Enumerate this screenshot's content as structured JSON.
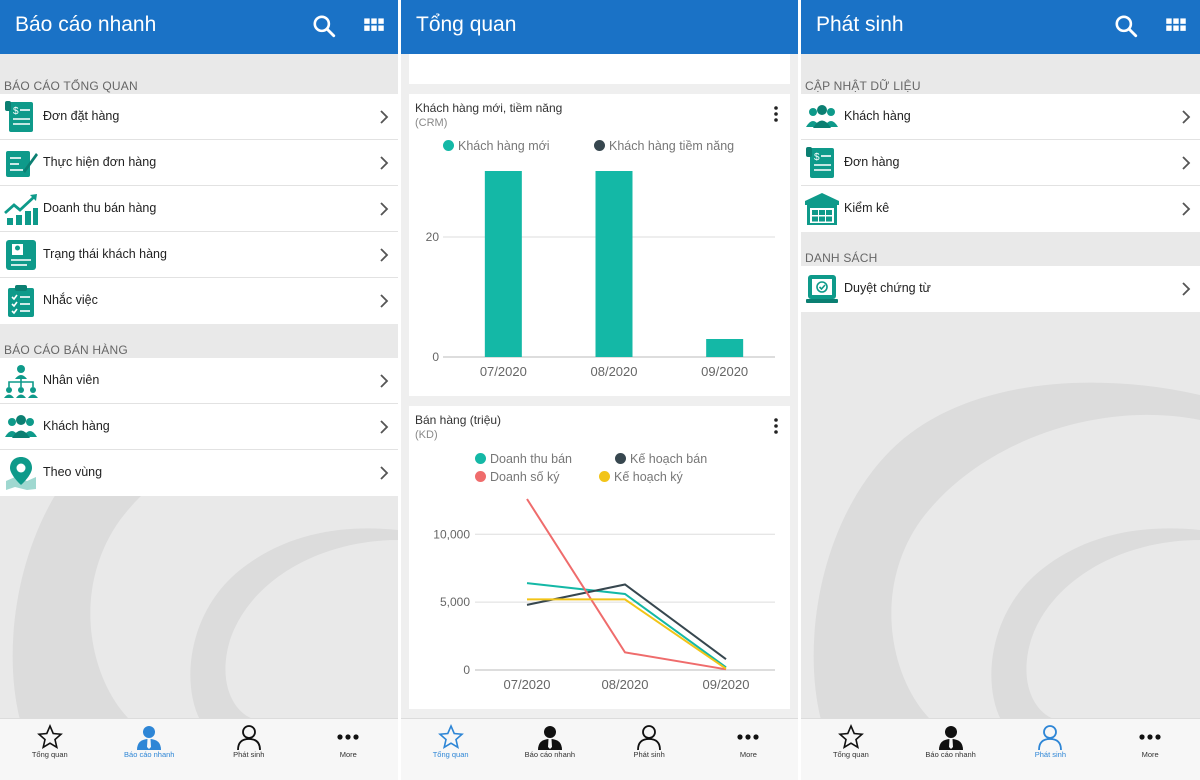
{
  "colors": {
    "app_bar": "#1a72c6",
    "accent_teal": "#14b8a6",
    "tab_active": "#2e86d6",
    "dark_series": "#37474f",
    "red_series": "#ef6c6c",
    "yellow_series": "#f2c418"
  },
  "screen1": {
    "title": "Báo cáo nhanh",
    "header_icons": [
      "search-icon",
      "grid-menu-icon"
    ],
    "section_overview": "BÁO CÁO TỔNG QUAN",
    "overview_items": [
      {
        "label": "Đơn đặt hàng",
        "icon": "order-document-icon"
      },
      {
        "label": "Thực hiện đơn hàng",
        "icon": "order-execution-icon"
      },
      {
        "label": "Doanh thu bán hàng",
        "icon": "revenue-chart-icon"
      },
      {
        "label": "Trạng thái khách hàng",
        "icon": "customer-status-icon"
      },
      {
        "label": "Nhắc việc",
        "icon": "task-clipboard-icon"
      }
    ],
    "section_sales": "BÁO CÁO BÁN HÀNG",
    "sales_items": [
      {
        "label": "Nhân viên",
        "icon": "org-chart-icon"
      },
      {
        "label": "Khách hàng",
        "icon": "customers-group-icon"
      },
      {
        "label": "Theo vùng",
        "icon": "map-pin-icon"
      }
    ]
  },
  "screen2": {
    "title": "Tổng quan",
    "card1": {
      "title": "Khách hàng mới, tiềm năng",
      "subtitle": "(CRM)"
    },
    "card2": {
      "title": "Bán hàng (triệu)",
      "subtitle": "(KD)"
    }
  },
  "screen3": {
    "title": "Phát sinh",
    "header_icons": [
      "search-icon",
      "grid-menu-icon"
    ],
    "section_update": "CẬP NHẬT DỮ LIỆU",
    "update_items": [
      {
        "label": "Khách hàng",
        "icon": "customers-group-icon"
      },
      {
        "label": "Đơn hàng",
        "icon": "order-document-icon"
      },
      {
        "label": "Kiểm kê",
        "icon": "warehouse-icon"
      }
    ],
    "section_list": "DANH SÁCH",
    "list_items": [
      {
        "label": "Duyệt chứng từ",
        "icon": "approve-document-icon"
      }
    ]
  },
  "tabs": {
    "labels": [
      "Tổng quan",
      "Báo cáo nhanh",
      "Phát sinh",
      "More"
    ],
    "icons": [
      "star-icon",
      "person-tie-icon",
      "person-outline-icon",
      "more-dots-icon"
    ],
    "active_by_screen": [
      1,
      0,
      2
    ]
  },
  "chart_data": [
    {
      "type": "bar",
      "categories": [
        "07/2020",
        "08/2020",
        "09/2020"
      ],
      "series": [
        {
          "name": "Khách hàng mới",
          "color": "#14b8a6",
          "values": [
            31,
            31,
            3
          ]
        },
        {
          "name": "Khách hàng tiềm năng",
          "color": "#37474f",
          "values": [
            0,
            0,
            0
          ]
        }
      ],
      "yticks": [
        0,
        20
      ],
      "ylim": [
        0,
        32
      ],
      "legend": "top",
      "grid": true
    },
    {
      "type": "line",
      "categories": [
        "07/2020",
        "08/2020",
        "09/2020"
      ],
      "series": [
        {
          "name": "Doanh thu bán",
          "color": "#14b8a6",
          "values": [
            6400,
            5600,
            200
          ]
        },
        {
          "name": "Kế hoạch bán",
          "color": "#37474f",
          "values": [
            4800,
            6300,
            800
          ]
        },
        {
          "name": "Doanh số ký",
          "color": "#ef6c6c",
          "values": [
            12600,
            1300,
            50
          ]
        },
        {
          "name": "Kế hoạch ký",
          "color": "#f2c418",
          "values": [
            5200,
            5200,
            100
          ]
        }
      ],
      "yticks": [
        "0",
        "5,000",
        "10,000"
      ],
      "ylim": [
        0,
        12600
      ],
      "legend": "top",
      "grid": true
    }
  ]
}
